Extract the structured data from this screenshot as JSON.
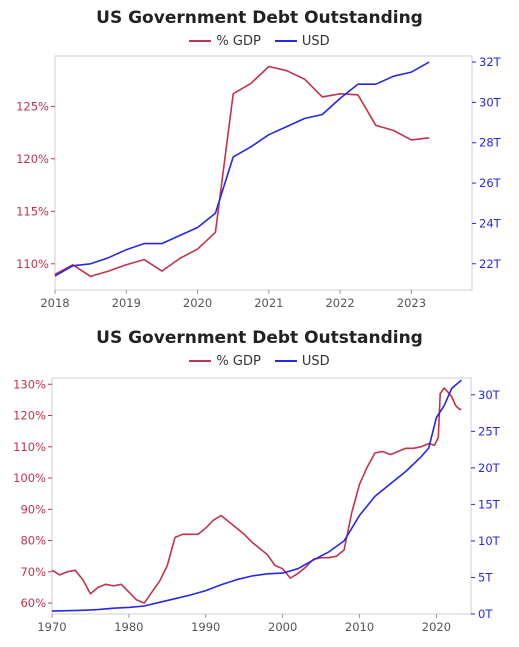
{
  "colors": {
    "pct_gdp": "#c0334d",
    "usd": "#2727e6",
    "axis": "#cfcfcf",
    "text": "#555555"
  },
  "chart_data": [
    {
      "type": "line",
      "title": "US Government Debt Outstanding",
      "legend_position": "top-center",
      "grid": false,
      "xlim": [
        2018,
        2023.85
      ],
      "x_ticks": [
        2018,
        2019,
        2020,
        2021,
        2022,
        2023
      ],
      "y_left": {
        "lim": [
          107.5,
          129.8
        ],
        "ticks": [
          110,
          115,
          120,
          125
        ],
        "tick_labels": [
          "110%",
          "115%",
          "120%",
          "125%"
        ]
      },
      "y_right": {
        "lim": [
          20.7,
          32.3
        ],
        "ticks": [
          22,
          24,
          26,
          28,
          30,
          32
        ],
        "tick_labels": [
          "22T",
          "24T",
          "26T",
          "28T",
          "30T",
          "32T"
        ]
      },
      "series": [
        {
          "name": "% GDP",
          "axis": "left",
          "x": [
            2018.0,
            2018.25,
            2018.5,
            2018.75,
            2019.0,
            2019.25,
            2019.5,
            2019.75,
            2020.0,
            2020.25,
            2020.5,
            2020.75,
            2021.0,
            2021.25,
            2021.5,
            2021.75,
            2022.0,
            2022.25,
            2022.5,
            2022.75,
            2023.0,
            2023.25
          ],
          "values": [
            109.0,
            109.9,
            108.8,
            109.3,
            109.9,
            110.4,
            109.3,
            110.5,
            111.4,
            113.0,
            126.2,
            127.2,
            128.8,
            128.4,
            127.6,
            125.9,
            126.2,
            126.1,
            123.2,
            122.7,
            121.8,
            122.0
          ]
        },
        {
          "name": "USD",
          "axis": "right",
          "x": [
            2018.0,
            2018.25,
            2018.5,
            2018.75,
            2019.0,
            2019.25,
            2019.5,
            2019.75,
            2020.0,
            2020.25,
            2020.5,
            2020.75,
            2021.0,
            2021.25,
            2021.5,
            2021.75,
            2022.0,
            2022.25,
            2022.5,
            2022.75,
            2023.0,
            2023.25
          ],
          "values": [
            21.4,
            21.9,
            22.0,
            22.3,
            22.7,
            23.0,
            23.0,
            23.4,
            23.8,
            24.5,
            27.3,
            27.8,
            28.4,
            28.8,
            29.2,
            29.4,
            30.2,
            30.9,
            30.9,
            31.3,
            31.5,
            32.0
          ]
        }
      ]
    },
    {
      "type": "line",
      "title": "US Government Debt Outstanding",
      "legend_position": "top-center",
      "grid": false,
      "xlim": [
        1970,
        2024.5
      ],
      "x_ticks": [
        1970,
        1980,
        1990,
        2000,
        2010,
        2020
      ],
      "y_left": {
        "lim": [
          56.5,
          132.0
        ],
        "ticks": [
          60,
          70,
          80,
          90,
          100,
          110,
          120,
          130
        ],
        "tick_labels": [
          "60%",
          "70%",
          "80%",
          "90%",
          "100%",
          "110%",
          "120%",
          "130%"
        ]
      },
      "y_right": {
        "lim": [
          0,
          32.3
        ],
        "ticks": [
          0,
          5,
          10,
          15,
          20,
          25,
          30
        ],
        "tick_labels": [
          "0T",
          "5T",
          "10T",
          "15T",
          "20T",
          "25T",
          "30T"
        ]
      },
      "series": [
        {
          "name": "% GDP",
          "axis": "left",
          "x": [
            1970,
            1971,
            1972,
            1973,
            1974,
            1975,
            1976,
            1977,
            1978,
            1979,
            1980,
            1981,
            1982,
            1983,
            1984,
            1985,
            1986,
            1987,
            1988,
            1989,
            1990,
            1991,
            1992,
            1993,
            1994,
            1995,
            1996,
            1997,
            1998,
            1999,
            2000,
            2001,
            2002,
            2003,
            2004,
            2005,
            2006,
            2007,
            2008,
            2009,
            2010,
            2011,
            2012,
            2013,
            2014,
            2015,
            2016,
            2017,
            2018,
            2019,
            2019.75,
            2020.25,
            2020.5,
            2021,
            2021.5,
            2022,
            2022.5,
            2023,
            2023.25
          ],
          "values": [
            70.5,
            69.0,
            70.0,
            70.5,
            67.5,
            63.0,
            65.0,
            66.0,
            65.5,
            66.0,
            63.5,
            61.0,
            60.0,
            63.5,
            67.0,
            72.0,
            81.0,
            82.0,
            82.0,
            82.0,
            84.0,
            86.5,
            88.0,
            86.0,
            84.0,
            82.0,
            79.5,
            77.5,
            75.5,
            72.0,
            71.0,
            68.0,
            69.5,
            71.5,
            74.0,
            74.5,
            74.5,
            75.0,
            77.0,
            89.0,
            98.0,
            103.5,
            108.0,
            108.5,
            107.5,
            108.5,
            109.5,
            109.5,
            110.0,
            111.0,
            110.5,
            113.0,
            127.0,
            128.8,
            127.5,
            126.0,
            123.2,
            122.0,
            122.0
          ]
        },
        {
          "name": "USD",
          "axis": "right",
          "x": [
            1970,
            1972,
            1974,
            1976,
            1978,
            1980,
            1982,
            1984,
            1986,
            1988,
            1990,
            1992,
            1994,
            1996,
            1998,
            2000,
            2002,
            2004,
            2006,
            2008,
            2010,
            2012,
            2014,
            2016,
            2018,
            2019,
            2020,
            2021,
            2022,
            2023.25
          ],
          "values": [
            0.4,
            0.45,
            0.5,
            0.6,
            0.8,
            0.9,
            1.1,
            1.6,
            2.1,
            2.6,
            3.2,
            4.0,
            4.7,
            5.2,
            5.5,
            5.6,
            6.2,
            7.4,
            8.5,
            10.0,
            13.5,
            16.1,
            17.8,
            19.5,
            21.5,
            22.7,
            26.9,
            28.5,
            30.9,
            32.0
          ]
        }
      ]
    }
  ]
}
